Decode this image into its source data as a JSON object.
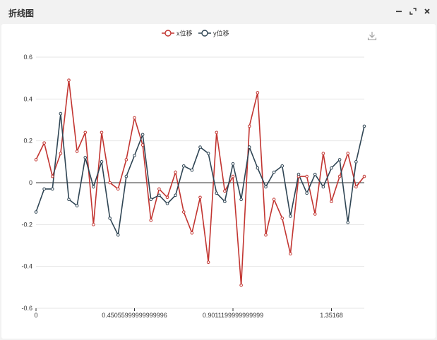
{
  "window": {
    "title": "折线图"
  },
  "controls": {
    "minimize_icon": "minimize-icon",
    "expand_icon": "expand-icon",
    "close_icon": "close-icon",
    "download_icon": "download-icon"
  },
  "colors": {
    "x_series": "#c23531",
    "y_series": "#2f4554",
    "axis": "#333333",
    "grid": "#e6e6e6"
  },
  "chart_data": {
    "type": "line",
    "legend_position": "top-center",
    "grid": true,
    "ylim": [
      -0.6,
      0.6
    ],
    "yticks": [
      "-0.6",
      "-0.4",
      "-0.2",
      "0",
      "0.2",
      "0.4",
      "0.6"
    ],
    "xtick_labels": [
      "0",
      "0.45055999999999996",
      "0.9011199999999999",
      "1.35168"
    ],
    "x_step": 0.03754666666666667,
    "series": [
      {
        "name": "x位移",
        "color": "#c23531",
        "values": [
          0.11,
          0.19,
          0.03,
          0.14,
          0.49,
          0.15,
          0.24,
          -0.2,
          0.24,
          0.0,
          -0.03,
          0.11,
          0.31,
          0.18,
          -0.18,
          -0.03,
          -0.07,
          0.05,
          -0.14,
          -0.24,
          -0.07,
          -0.38,
          0.24,
          -0.04,
          0.03,
          -0.49,
          0.27,
          0.43,
          -0.25,
          -0.08,
          -0.17,
          -0.34,
          0.03,
          0.03,
          -0.15,
          0.14,
          -0.09,
          0.03,
          0.14,
          -0.02,
          0.03
        ]
      },
      {
        "name": "y位移",
        "color": "#2f4554",
        "values": [
          -0.14,
          -0.03,
          -0.03,
          0.33,
          -0.08,
          -0.11,
          0.12,
          -0.02,
          0.1,
          -0.17,
          -0.25,
          0.03,
          0.13,
          0.23,
          -0.08,
          -0.06,
          -0.1,
          -0.06,
          0.08,
          0.06,
          0.17,
          0.14,
          -0.05,
          -0.09,
          0.09,
          -0.08,
          0.17,
          0.07,
          -0.02,
          0.05,
          0.08,
          -0.16,
          0.04,
          -0.05,
          0.04,
          -0.02,
          0.07,
          0.11,
          -0.19,
          0.1,
          0.27
        ]
      }
    ]
  }
}
